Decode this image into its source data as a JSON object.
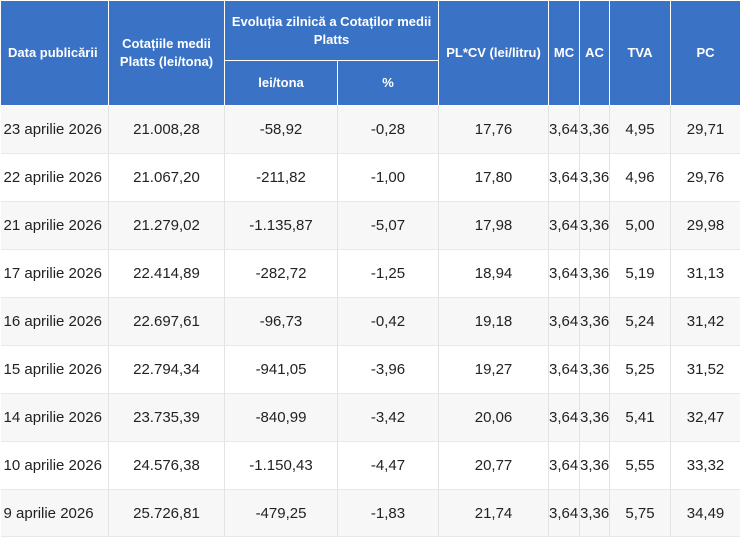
{
  "table": {
    "headers": {
      "date": "Data publicării",
      "platts": "Cotațiile medii Platts (lei/tona)",
      "evolution": "Evoluția zilnică a Cotaților medii Platts",
      "evolution_lei": "lei/tona",
      "evolution_pct": "%",
      "plcv": "PL*CV (lei/litru)",
      "mc": "MC",
      "ac": "AC",
      "tva": "TVA",
      "pc": "PC"
    },
    "rows": [
      {
        "date": "23 aprilie 2026",
        "platts": "21.008,28",
        "lei": "-58,92",
        "pct": "-0,28",
        "plcv": "17,76",
        "mc": "3,64",
        "ac": "3,36",
        "tva": "4,95",
        "pc": "29,71"
      },
      {
        "date": "22 aprilie 2026",
        "platts": "21.067,20",
        "lei": "-211,82",
        "pct": "-1,00",
        "plcv": "17,80",
        "mc": "3,64",
        "ac": "3,36",
        "tva": "4,96",
        "pc": "29,76"
      },
      {
        "date": "21 aprilie 2026",
        "platts": "21.279,02",
        "lei": "-1.135,87",
        "pct": "-5,07",
        "plcv": "17,98",
        "mc": "3,64",
        "ac": "3,36",
        "tva": "5,00",
        "pc": "29,98"
      },
      {
        "date": "17 aprilie 2026",
        "platts": "22.414,89",
        "lei": "-282,72",
        "pct": "-1,25",
        "plcv": "18,94",
        "mc": "3,64",
        "ac": "3,36",
        "tva": "5,19",
        "pc": "31,13"
      },
      {
        "date": "16 aprilie 2026",
        "platts": "22.697,61",
        "lei": "-96,73",
        "pct": "-0,42",
        "plcv": "19,18",
        "mc": "3,64",
        "ac": "3,36",
        "tva": "5,24",
        "pc": "31,42"
      },
      {
        "date": "15 aprilie 2026",
        "platts": "22.794,34",
        "lei": "-941,05",
        "pct": "-3,96",
        "plcv": "19,27",
        "mc": "3,64",
        "ac": "3,36",
        "tva": "5,25",
        "pc": "31,52"
      },
      {
        "date": "14 aprilie 2026",
        "platts": "23.735,39",
        "lei": "-840,99",
        "pct": "-3,42",
        "plcv": "20,06",
        "mc": "3,64",
        "ac": "3,36",
        "tva": "5,41",
        "pc": "32,47"
      },
      {
        "date": "10 aprilie 2026",
        "platts": "24.576,38",
        "lei": "-1.150,43",
        "pct": "-4,47",
        "plcv": "20,77",
        "mc": "3,64",
        "ac": "3,36",
        "tva": "5,55",
        "pc": "33,32"
      },
      {
        "date": "9 aprilie 2026",
        "platts": "25.726,81",
        "lei": "-479,25",
        "pct": "-1,83",
        "plcv": "21,74",
        "mc": "3,64",
        "ac": "3,36",
        "tva": "5,75",
        "pc": "34,49"
      }
    ]
  }
}
